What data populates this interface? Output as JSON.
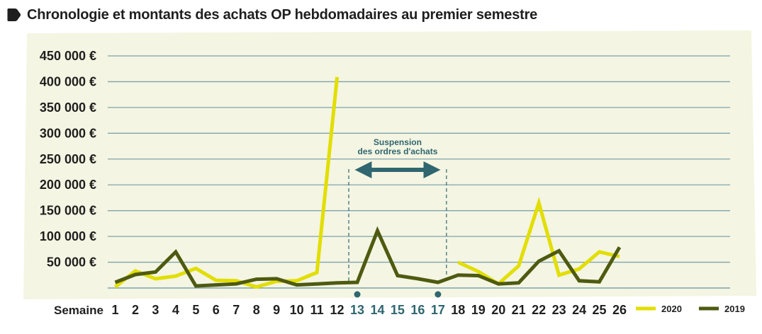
{
  "header": {
    "title": "Chronologie et montants des achats OP hebdomadaires au premier semestre",
    "icon": "pentagon-arrow-icon"
  },
  "colors": {
    "panel": "#f4f5e2",
    "grid": "#7fa3ac",
    "series_2020": "#e2de00",
    "series_2019": "#4e5a10",
    "annotation": "#2f6670",
    "text": "#1f1f1f"
  },
  "chart_data": {
    "type": "line",
    "title": "Chronologie et montants des achats OP hebdomadaires au premier semestre",
    "xlabel": "Semaine",
    "ylabel": "",
    "x": [
      1,
      2,
      3,
      4,
      5,
      6,
      7,
      8,
      9,
      10,
      11,
      12,
      13,
      14,
      15,
      16,
      17,
      18,
      19,
      20,
      21,
      22,
      23,
      24,
      25,
      26
    ],
    "ylim": [
      0,
      450000
    ],
    "yticks": [
      50000,
      100000,
      150000,
      200000,
      250000,
      300000,
      350000,
      400000,
      450000
    ],
    "ytick_labels": [
      "50 000 €",
      "100 000 €",
      "150 000 €",
      "200 000 €",
      "250 000 €",
      "300 000 €",
      "350 000 €",
      "400 000 €",
      "450 000 €"
    ],
    "highlight_weeks": [
      13,
      14,
      15,
      16,
      17
    ],
    "grid": "horizontal",
    "legend_position": "bottom-right",
    "series": [
      {
        "name": "2020",
        "values": [
          2000,
          33000,
          18000,
          23000,
          38000,
          15000,
          14000,
          2000,
          13000,
          14000,
          30000,
          409000,
          null,
          null,
          null,
          null,
          null,
          50000,
          32000,
          8000,
          43000,
          165000,
          25000,
          37000,
          70000,
          61000
        ]
      },
      {
        "name": "2019",
        "values": [
          11000,
          26000,
          31000,
          70000,
          4000,
          6000,
          8000,
          17000,
          18000,
          6000,
          8000,
          10000,
          11000,
          111000,
          24000,
          18000,
          11000,
          25000,
          24000,
          8000,
          10000,
          52000,
          72000,
          14000,
          12000,
          79000
        ]
      }
    ],
    "annotations": [
      {
        "text_lines": [
          "Suspension",
          "des ordres d'achats"
        ],
        "from_week": 13,
        "to_week": 17
      }
    ]
  }
}
